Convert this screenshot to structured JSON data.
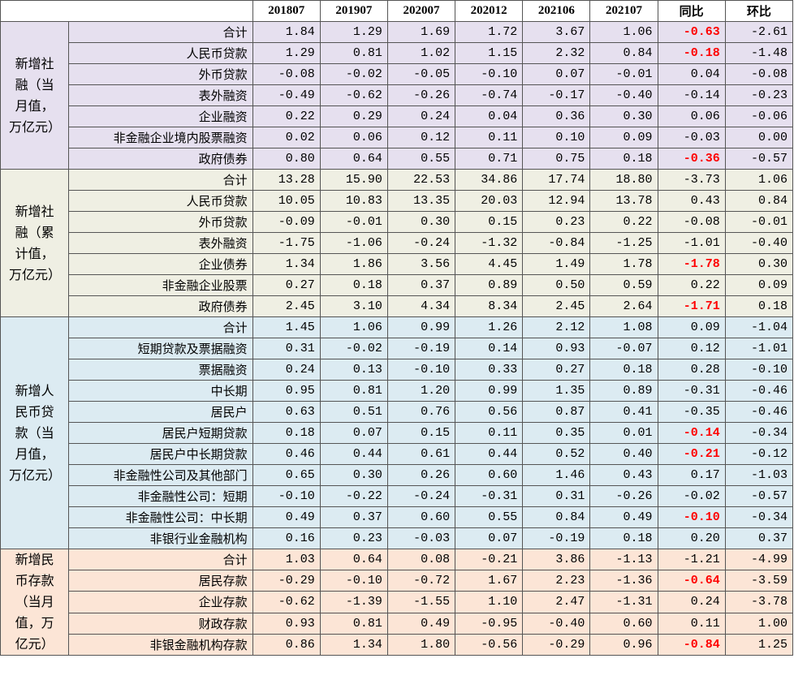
{
  "table": {
    "highlight_color": "#ff0000",
    "columns": [
      "201807",
      "201907",
      "202007",
      "202012",
      "202106",
      "202107",
      "同比",
      "环比"
    ],
    "groups": [
      {
        "label": "新增社融（当月值，万亿元）",
        "color": "#e6e0ef",
        "rows": [
          {
            "label": "合计",
            "values": [
              "1.84",
              "1.29",
              "1.69",
              "1.72",
              "3.67",
              "1.06",
              "-0.63",
              "-2.61"
            ],
            "highlight": true
          },
          {
            "label": "人民币贷款",
            "values": [
              "1.29",
              "0.81",
              "1.02",
              "1.15",
              "2.32",
              "0.84",
              "-0.18",
              "-1.48"
            ],
            "highlight": true
          },
          {
            "label": "外币贷款",
            "values": [
              "-0.08",
              "-0.02",
              "-0.05",
              "-0.10",
              "0.07",
              "-0.01",
              "0.04",
              "-0.08"
            ]
          },
          {
            "label": "表外融资",
            "values": [
              "-0.49",
              "-0.62",
              "-0.26",
              "-0.74",
              "-0.17",
              "-0.40",
              "-0.14",
              "-0.23"
            ]
          },
          {
            "label": "企业融资",
            "values": [
              "0.22",
              "0.29",
              "0.24",
              "0.04",
              "0.36",
              "0.30",
              "0.06",
              "-0.06"
            ]
          },
          {
            "label": "非金融企业境内股票融资",
            "values": [
              "0.02",
              "0.06",
              "0.12",
              "0.11",
              "0.10",
              "0.09",
              "-0.03",
              "0.00"
            ]
          },
          {
            "label": "政府债券",
            "values": [
              "0.80",
              "0.64",
              "0.55",
              "0.71",
              "0.75",
              "0.18",
              "-0.36",
              "-0.57"
            ],
            "highlight": true
          }
        ]
      },
      {
        "label": "新增社融（累计值，万亿元）",
        "color": "#efefe3",
        "rows": [
          {
            "label": "合计",
            "values": [
              "13.28",
              "15.90",
              "22.53",
              "34.86",
              "17.74",
              "18.80",
              "-3.73",
              "1.06"
            ]
          },
          {
            "label": "人民币贷款",
            "values": [
              "10.05",
              "10.83",
              "13.35",
              "20.03",
              "12.94",
              "13.78",
              "0.43",
              "0.84"
            ]
          },
          {
            "label": "外币贷款",
            "values": [
              "-0.09",
              "-0.01",
              "0.30",
              "0.15",
              "0.23",
              "0.22",
              "-0.08",
              "-0.01"
            ]
          },
          {
            "label": "表外融资",
            "values": [
              "-1.75",
              "-1.06",
              "-0.24",
              "-1.32",
              "-0.84",
              "-1.25",
              "-1.01",
              "-0.40"
            ]
          },
          {
            "label": "企业债券",
            "values": [
              "1.34",
              "1.86",
              "3.56",
              "4.45",
              "1.49",
              "1.78",
              "-1.78",
              "0.30"
            ],
            "highlight": true
          },
          {
            "label": "非金融企业股票",
            "values": [
              "0.27",
              "0.18",
              "0.37",
              "0.89",
              "0.50",
              "0.59",
              "0.22",
              "0.09"
            ]
          },
          {
            "label": "政府债券",
            "values": [
              "2.45",
              "3.10",
              "4.34",
              "8.34",
              "2.45",
              "2.64",
              "-1.71",
              "0.18"
            ],
            "highlight": true
          }
        ]
      },
      {
        "label": "新增人民币贷款（当月值，万亿元）",
        "color": "#dcebf2",
        "rows": [
          {
            "label": "合计",
            "values": [
              "1.45",
              "1.06",
              "0.99",
              "1.26",
              "2.12",
              "1.08",
              "0.09",
              "-1.04"
            ]
          },
          {
            "label": "短期贷款及票据融资",
            "values": [
              "0.31",
              "-0.02",
              "-0.19",
              "0.14",
              "0.93",
              "-0.07",
              "0.12",
              "-1.01"
            ]
          },
          {
            "label": "票据融资",
            "values": [
              "0.24",
              "0.13",
              "-0.10",
              "0.33",
              "0.27",
              "0.18",
              "0.28",
              "-0.10"
            ]
          },
          {
            "label": "中长期",
            "values": [
              "0.95",
              "0.81",
              "1.20",
              "0.99",
              "1.35",
              "0.89",
              "-0.31",
              "-0.46"
            ]
          },
          {
            "label": "居民户",
            "values": [
              "0.63",
              "0.51",
              "0.76",
              "0.56",
              "0.87",
              "0.41",
              "-0.35",
              "-0.46"
            ]
          },
          {
            "label": "居民户短期贷款",
            "values": [
              "0.18",
              "0.07",
              "0.15",
              "0.11",
              "0.35",
              "0.01",
              "-0.14",
              "-0.34"
            ],
            "highlight": true
          },
          {
            "label": "居民户中长期贷款",
            "values": [
              "0.46",
              "0.44",
              "0.61",
              "0.44",
              "0.52",
              "0.40",
              "-0.21",
              "-0.12"
            ],
            "highlight": true
          },
          {
            "label": "非金融性公司及其他部门",
            "values": [
              "0.65",
              "0.30",
              "0.26",
              "0.60",
              "1.46",
              "0.43",
              "0.17",
              "-1.03"
            ]
          },
          {
            "label": "非金融性公司：短期",
            "values": [
              "-0.10",
              "-0.22",
              "-0.24",
              "-0.31",
              "0.31",
              "-0.26",
              "-0.02",
              "-0.57"
            ]
          },
          {
            "label": "非金融性公司：中长期",
            "values": [
              "0.49",
              "0.37",
              "0.60",
              "0.55",
              "0.84",
              "0.49",
              "-0.10",
              "-0.34"
            ],
            "highlight": true
          },
          {
            "label": "非银行业金融机构",
            "values": [
              "0.16",
              "0.23",
              "-0.03",
              "0.07",
              "-0.19",
              "0.18",
              "0.20",
              "0.37"
            ]
          }
        ]
      },
      {
        "label": "新增民币存款（当月值，万亿元）",
        "color": "#fce5d6",
        "rows": [
          {
            "label": "合计",
            "values": [
              "1.03",
              "0.64",
              "0.08",
              "-0.21",
              "3.86",
              "-1.13",
              "-1.21",
              "-4.99"
            ]
          },
          {
            "label": "居民存款",
            "values": [
              "-0.29",
              "-0.10",
              "-0.72",
              "1.67",
              "2.23",
              "-1.36",
              "-0.64",
              "-3.59"
            ],
            "highlight": true
          },
          {
            "label": "企业存款",
            "values": [
              "-0.62",
              "-1.39",
              "-1.55",
              "1.10",
              "2.47",
              "-1.31",
              "0.24",
              "-3.78"
            ]
          },
          {
            "label": "财政存款",
            "values": [
              "0.93",
              "0.81",
              "0.49",
              "-0.95",
              "-0.40",
              "0.60",
              "0.11",
              "1.00"
            ]
          },
          {
            "label": "非银金融机构存款",
            "values": [
              "0.86",
              "1.34",
              "1.80",
              "-0.56",
              "-0.29",
              "0.96",
              "-0.84",
              "1.25"
            ],
            "highlight": true
          }
        ]
      }
    ]
  }
}
